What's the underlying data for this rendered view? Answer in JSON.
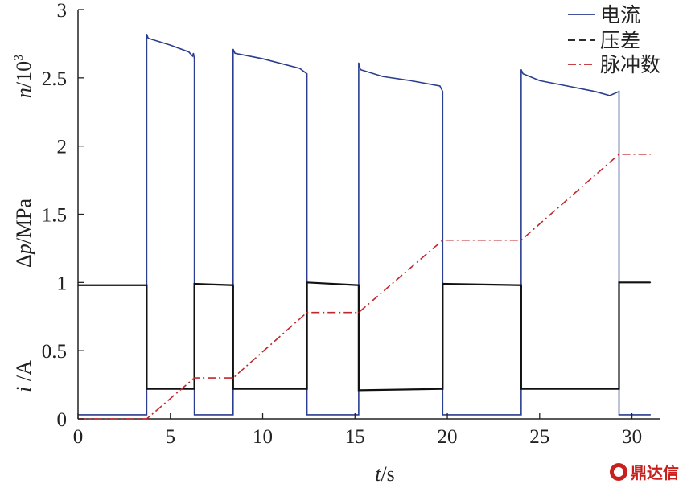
{
  "chart_data": {
    "type": "line",
    "xlabel_italic": "t",
    "xlabel_unit": "/s",
    "ylabels": [
      {
        "italic": "n",
        "text": "/10",
        "sup": "3"
      },
      {
        "prefix": "Δ",
        "italic": "p",
        "text": "/MPa"
      },
      {
        "italic": "i",
        "text": " /A"
      }
    ],
    "xlim": [
      0,
      31.5
    ],
    "ylim": [
      0,
      3
    ],
    "xticks": [
      0,
      5,
      10,
      15,
      20,
      25,
      30
    ],
    "yticks": [
      0,
      0.5,
      1,
      1.5,
      2,
      2.5,
      3
    ],
    "ytick_labels": [
      "0",
      "0.5",
      "1",
      "1.5",
      "2",
      "2.5",
      "3"
    ],
    "grid": false,
    "legend_position": "top-right",
    "series": [
      {
        "name": "电流",
        "color": "#2b3d8f",
        "dash": "solid",
        "x": [
          0,
          3.72,
          3.72,
          3.8,
          5.0,
          6.0,
          6.2,
          6.25,
          6.3,
          6.3,
          8.4,
          8.4,
          8.5,
          10.0,
          12.0,
          12.4,
          12.4,
          15.2,
          15.2,
          15.3,
          16.5,
          18.0,
          19.6,
          19.75,
          19.75,
          24.0,
          24.0,
          24.1,
          25.0,
          26.5,
          28.0,
          28.8,
          29.3,
          29.3,
          31.0
        ],
        "y": [
          0.03,
          0.03,
          2.82,
          2.79,
          2.74,
          2.69,
          2.66,
          2.68,
          2.64,
          0.03,
          0.03,
          2.71,
          2.68,
          2.64,
          2.57,
          2.53,
          0.03,
          0.03,
          2.61,
          2.56,
          2.51,
          2.48,
          2.44,
          2.4,
          0.03,
          0.03,
          2.56,
          2.53,
          2.48,
          2.44,
          2.4,
          2.37,
          2.4,
          0.03,
          0.03
        ]
      },
      {
        "name": "压差",
        "color": "#111111",
        "dash": "dashed",
        "x": [
          0,
          3.72,
          3.72,
          6.3,
          6.3,
          8.4,
          8.4,
          12.4,
          12.4,
          15.2,
          15.2,
          19.75,
          19.75,
          24.0,
          24.0,
          29.3,
          29.3,
          31.0
        ],
        "y": [
          0.98,
          0.98,
          0.22,
          0.22,
          0.99,
          0.98,
          0.22,
          0.22,
          1.0,
          0.98,
          0.21,
          0.22,
          0.99,
          0.98,
          0.22,
          0.22,
          1.0,
          1.0
        ]
      },
      {
        "name": "脉冲数",
        "color": "#c0272d",
        "dash": "dashdot",
        "x": [
          0,
          3.72,
          6.3,
          8.4,
          12.4,
          15.2,
          19.75,
          24.0,
          29.3,
          31.0
        ],
        "y": [
          0,
          0,
          0.3,
          0.3,
          0.78,
          0.78,
          1.31,
          1.31,
          1.94,
          1.94
        ]
      }
    ]
  },
  "watermark": {
    "text": "鼎达信"
  }
}
